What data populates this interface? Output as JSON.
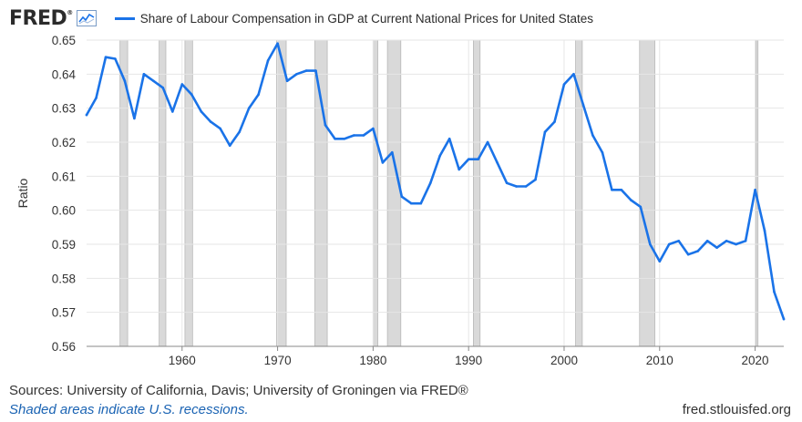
{
  "header": {
    "logo_text": "FRED",
    "logo_reg": "®",
    "legend_label": "Share of Labour Compensation in GDP at Current National Prices for United States"
  },
  "footer": {
    "sources": "Sources: University of California, Davis; University of Groningen via FRED®",
    "shaded_note": "Shaded areas indicate U.S. recessions.",
    "site": "fred.stlouisfed.org"
  },
  "colors": {
    "line": "#1a73e8",
    "recession": "#d9d9d9",
    "grid": "#e6e6e6",
    "plot_background": "#ffffff"
  },
  "chart_data": {
    "type": "line",
    "title": "",
    "xlabel": "",
    "ylabel": "Ratio",
    "xlim": [
      1950,
      2023
    ],
    "ylim": [
      0.56,
      0.65
    ],
    "grid": true,
    "yticks": [
      "0.56",
      "0.57",
      "0.58",
      "0.59",
      "0.60",
      "0.61",
      "0.62",
      "0.63",
      "0.64",
      "0.65"
    ],
    "xticks": [
      "1960",
      "1970",
      "1980",
      "1990",
      "2000",
      "2010",
      "2020"
    ],
    "recessions": [
      [
        1953.5,
        1954.3
      ],
      [
        1957.6,
        1958.3
      ],
      [
        1960.3,
        1961.1
      ],
      [
        1969.9,
        1970.9
      ],
      [
        1973.9,
        1975.2
      ],
      [
        1980.0,
        1980.5
      ],
      [
        1981.5,
        1982.9
      ],
      [
        1990.5,
        1991.2
      ],
      [
        2001.2,
        2001.9
      ],
      [
        2007.9,
        2009.5
      ],
      [
        2020.1,
        2020.3
      ]
    ],
    "series": [
      {
        "name": "Share of Labour Compensation in GDP at Current National Prices for United States",
        "x": [
          1950,
          1951,
          1952,
          1953,
          1954,
          1955,
          1956,
          1957,
          1958,
          1959,
          1960,
          1961,
          1962,
          1963,
          1964,
          1965,
          1966,
          1967,
          1968,
          1969,
          1970,
          1971,
          1972,
          1973,
          1974,
          1975,
          1976,
          1977,
          1978,
          1979,
          1980,
          1981,
          1982,
          1983,
          1984,
          1985,
          1986,
          1987,
          1988,
          1989,
          1990,
          1991,
          1992,
          1993,
          1994,
          1995,
          1996,
          1997,
          1998,
          1999,
          2000,
          2001,
          2002,
          2003,
          2004,
          2005,
          2006,
          2007,
          2008,
          2009,
          2010,
          2011,
          2012,
          2013,
          2014,
          2015,
          2016,
          2017,
          2018,
          2019,
          2020,
          2021,
          2022,
          2023
        ],
        "values": [
          0.628,
          0.633,
          0.645,
          0.6445,
          0.638,
          0.627,
          0.64,
          0.638,
          0.636,
          0.629,
          0.637,
          0.634,
          0.629,
          0.626,
          0.624,
          0.619,
          0.623,
          0.63,
          0.634,
          0.644,
          0.649,
          0.638,
          0.64,
          0.641,
          0.641,
          0.625,
          0.621,
          0.621,
          0.622,
          0.622,
          0.624,
          0.614,
          0.617,
          0.604,
          0.602,
          0.602,
          0.608,
          0.616,
          0.621,
          0.612,
          0.615,
          0.615,
          0.62,
          0.614,
          0.608,
          0.607,
          0.607,
          0.609,
          0.623,
          0.626,
          0.637,
          0.64,
          0.631,
          0.622,
          0.617,
          0.606,
          0.606,
          0.603,
          0.601,
          0.59,
          0.585,
          0.59,
          0.591,
          0.587,
          0.588,
          0.591,
          0.589,
          0.591,
          0.59,
          0.591,
          0.606,
          0.594,
          0.576,
          0.568
        ]
      }
    ]
  }
}
